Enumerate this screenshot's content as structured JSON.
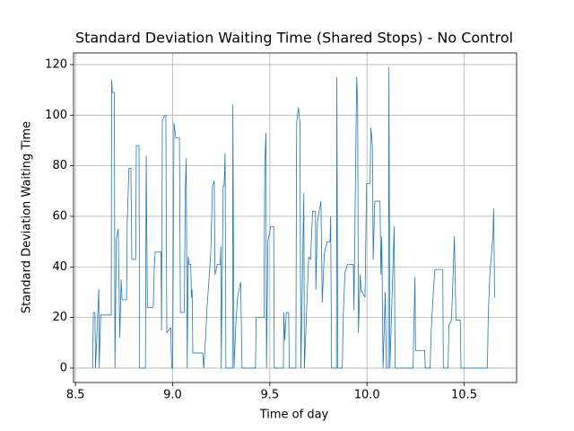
{
  "chart_data": {
    "type": "line",
    "title": "Standard Deviation Waiting Time (Shared Stops) - No Control",
    "x_label": "Time of day",
    "y_label": "Standard Deviation Waiting Time",
    "xlim": [
      8.49,
      10.77
    ],
    "ylim": [
      -5.7,
      124.6
    ],
    "xticks": [
      8.5,
      {
        "value": 9,
        "label": "9.0"
      },
      9.5,
      {
        "value": 10,
        "label": "10.0"
      },
      10.5
    ],
    "yticks": [
      0,
      20,
      40,
      60,
      80,
      100,
      120
    ],
    "grid": true,
    "series": [
      {
        "color": "#1f77b4",
        "x": [
          8.588,
          8.592,
          8.6,
          8.603,
          8.62,
          8.622,
          8.63,
          8.684,
          8.686,
          8.69,
          8.7,
          8.703,
          8.71,
          8.72,
          8.728,
          8.735,
          8.74,
          8.763,
          8.766,
          8.775,
          8.785,
          8.79,
          8.81,
          8.813,
          8.827,
          8.83,
          8.86,
          8.864,
          8.87,
          8.9,
          8.905,
          8.91,
          8.94,
          8.943,
          8.947,
          8.96,
          8.965,
          8.97,
          8.99,
          8.995,
          9.0,
          9.007,
          9.016,
          9.035,
          9.04,
          9.06,
          9.065,
          9.07,
          9.075,
          9.08,
          9.085,
          9.093,
          9.097,
          9.1,
          9.104,
          9.155,
          9.16,
          9.168,
          9.177,
          9.196,
          9.205,
          9.214,
          9.218,
          9.23,
          9.245,
          9.248,
          9.25,
          9.26,
          9.265,
          9.27,
          9.274,
          9.308,
          9.31,
          9.316,
          9.325,
          9.334,
          9.35,
          9.357,
          9.426,
          9.43,
          9.47,
          9.474,
          9.48,
          9.483,
          9.49,
          9.505,
          9.52,
          9.523,
          9.57,
          9.572,
          9.577,
          9.585,
          9.597,
          9.6,
          9.634,
          9.638,
          9.647,
          9.655,
          9.66,
          9.675,
          9.678,
          9.7,
          9.71,
          9.72,
          9.735,
          9.737,
          9.745,
          9.763,
          9.77,
          9.78,
          9.795,
          9.81,
          9.813,
          9.818,
          9.843,
          9.845,
          9.85,
          9.873,
          9.878,
          9.887,
          9.9,
          9.93,
          9.933,
          9.947,
          9.952,
          9.956,
          9.965,
          9.97,
          9.975,
          9.99,
          9.998,
          10.016,
          10.02,
          10.028,
          10.032,
          10.04,
          10.067,
          10.072,
          10.076,
          10.083,
          10.094,
          10.1,
          10.11,
          10.113,
          10.118,
          10.14,
          10.145,
          10.237,
          10.247,
          10.25,
          10.297,
          10.3,
          10.325,
          10.33,
          10.343,
          10.35,
          10.39,
          10.393,
          10.417,
          10.422,
          10.435,
          10.45,
          10.458,
          10.48,
          10.484,
          10.62,
          10.624,
          10.633,
          10.648,
          10.652,
          10.657,
          10.66
        ],
        "values": [
          0,
          22,
          22,
          0,
          31,
          0,
          21,
          21,
          114,
          109,
          109,
          0,
          51,
          55,
          12,
          35,
          27,
          27,
          57,
          79,
          79,
          43,
          43,
          88,
          88,
          0,
          0,
          84,
          24,
          24,
          39,
          46,
          46,
          15,
          98,
          100,
          100,
          14,
          16,
          0,
          0,
          97,
          91,
          91,
          22,
          22,
          70,
          83,
          0,
          44,
          41,
          41,
          28,
          31,
          6,
          6,
          0,
          10,
          24,
          45,
          72,
          74,
          37,
          41,
          41,
          48,
          0,
          72,
          72,
          85,
          0,
          0,
          104,
          0,
          17,
          28,
          34,
          0,
          0,
          20,
          20,
          80,
          93,
          0,
          50,
          56,
          56,
          0,
          0,
          22,
          11,
          22,
          22,
          0,
          0,
          97,
          103,
          97,
          0,
          69,
          0,
          44,
          43,
          62,
          62,
          31,
          58,
          66,
          26,
          45,
          50,
          50,
          60,
          0,
          0,
          115,
          0,
          0,
          21,
          38,
          41,
          41,
          23,
          115,
          104,
          14,
          37,
          31,
          30,
          28,
          73,
          73,
          95,
          88,
          43,
          66,
          66,
          37,
          52,
          0,
          30,
          0,
          0,
          119,
          0,
          56,
          0,
          0,
          36,
          7,
          7,
          0,
          0,
          14,
          32,
          39,
          39,
          0,
          0,
          17,
          19,
          52,
          19,
          19,
          0,
          0,
          21,
          38,
          52,
          63,
          28,
          28
        ]
      }
    ]
  }
}
